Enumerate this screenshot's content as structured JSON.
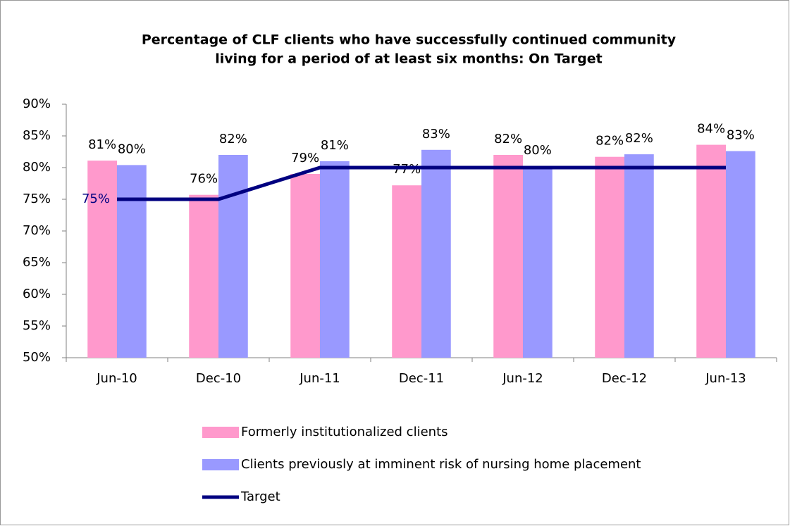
{
  "chart_data": {
    "type": "bar",
    "title": [
      "Percentage of CLF clients who have successfully continued community",
      "living for a period of at least six months: On Target"
    ],
    "categories": [
      "Jun-10",
      "Dec-10",
      "Jun-11",
      "Dec-11",
      "Jun-12",
      "Dec-12",
      "Jun-13"
    ],
    "series": [
      {
        "name": "Formerly institutionalized clients",
        "type": "bar",
        "color": "#ff99cc",
        "values": [
          81.1,
          75.7,
          79.0,
          77.2,
          82.0,
          81.7,
          83.6
        ],
        "value_labels": [
          "81%",
          "76%",
          "79%",
          "77%",
          "82%",
          "82%",
          "84%"
        ]
      },
      {
        "name": "Clients previously at imminent risk of nursing home placement",
        "type": "bar",
        "color": "#9999ff",
        "values": [
          80.4,
          82.0,
          81.0,
          82.8,
          80.2,
          82.1,
          82.6
        ],
        "value_labels": [
          "80%",
          "82%",
          "81%",
          "83%",
          "80%",
          "82%",
          "83%"
        ]
      },
      {
        "name": "Target",
        "type": "line",
        "color": "#000080",
        "values": [
          75,
          75,
          80,
          80,
          80,
          80,
          80
        ],
        "value_labels": [
          "75%",
          null,
          null,
          null,
          null,
          null,
          null
        ]
      }
    ],
    "ylim": [
      50,
      90
    ],
    "yticks": [
      {
        "value": 50,
        "label": "50%"
      },
      {
        "value": 55,
        "label": "55%"
      },
      {
        "value": 60,
        "label": "60%"
      },
      {
        "value": 65,
        "label": "65%"
      },
      {
        "value": 70,
        "label": "70%"
      },
      {
        "value": 75,
        "label": "75%"
      },
      {
        "value": 80,
        "label": "80%"
      },
      {
        "value": 85,
        "label": "85%"
      },
      {
        "value": 90,
        "label": "90%"
      }
    ],
    "grid": false,
    "legend": "bottom"
  }
}
